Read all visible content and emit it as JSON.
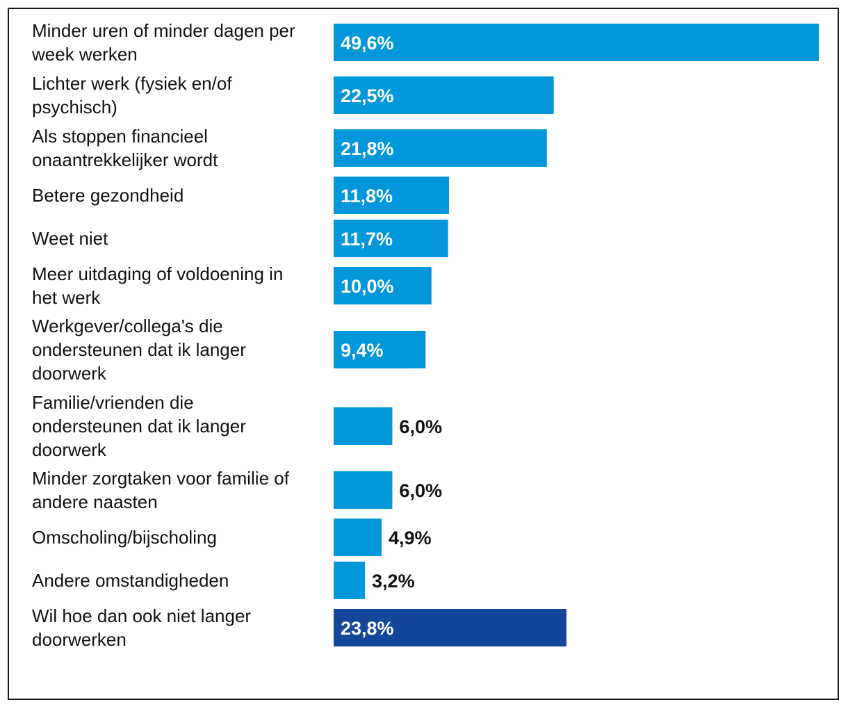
{
  "chart_data": {
    "type": "bar",
    "orientation": "horizontal",
    "title": "",
    "xlabel": "",
    "ylabel": "",
    "xlim": [
      0,
      49.6
    ],
    "unit": "%",
    "colors": {
      "default": "#0296DA",
      "highlight": "#14479C",
      "text_inside": "#ffffff",
      "text_outside": "#111111"
    },
    "bars": [
      {
        "label": [
          "Minder uren of minder dagen per",
          "week werken"
        ],
        "value": 49.6,
        "value_label": "49,6%"
      },
      {
        "label": [
          "Lichter werk (fysiek en/of",
          "psychisch)"
        ],
        "value": 22.5,
        "value_label": "22,5%"
      },
      {
        "label": [
          "Als stoppen financieel",
          "onaantrekkelijker wordt"
        ],
        "value": 21.8,
        "value_label": "21,8%"
      },
      {
        "label": [
          "Betere gezondheid"
        ],
        "value": 11.8,
        "value_label": "11,8%"
      },
      {
        "label": [
          "Weet niet"
        ],
        "value": 11.7,
        "value_label": "11,7%"
      },
      {
        "label": [
          "Meer uitdaging of voldoening in",
          "het werk"
        ],
        "value": 10.0,
        "value_label": "10,0%"
      },
      {
        "label": [
          "Werkgever/collega's die",
          "ondersteunen dat ik langer",
          "doorwerk"
        ],
        "value": 9.4,
        "value_label": "9,4%"
      },
      {
        "label": [
          "Familie/vrienden die",
          "ondersteunen dat ik langer",
          "doorwerk"
        ],
        "value": 6.0,
        "value_label": "6,0%"
      },
      {
        "label": [
          "Minder zorgtaken voor familie of",
          "andere naasten"
        ],
        "value": 6.0,
        "value_label": "6,0%"
      },
      {
        "label": [
          "Omscholing/bijscholing"
        ],
        "value": 4.9,
        "value_label": "4,9%"
      },
      {
        "label": [
          "Andere omstandigheden"
        ],
        "value": 3.2,
        "value_label": "3,2%"
      },
      {
        "label": [
          "Wil hoe dan ook niet langer",
          "doorwerken"
        ],
        "value": 23.8,
        "value_label": "23,8%",
        "highlight": true
      }
    ]
  }
}
